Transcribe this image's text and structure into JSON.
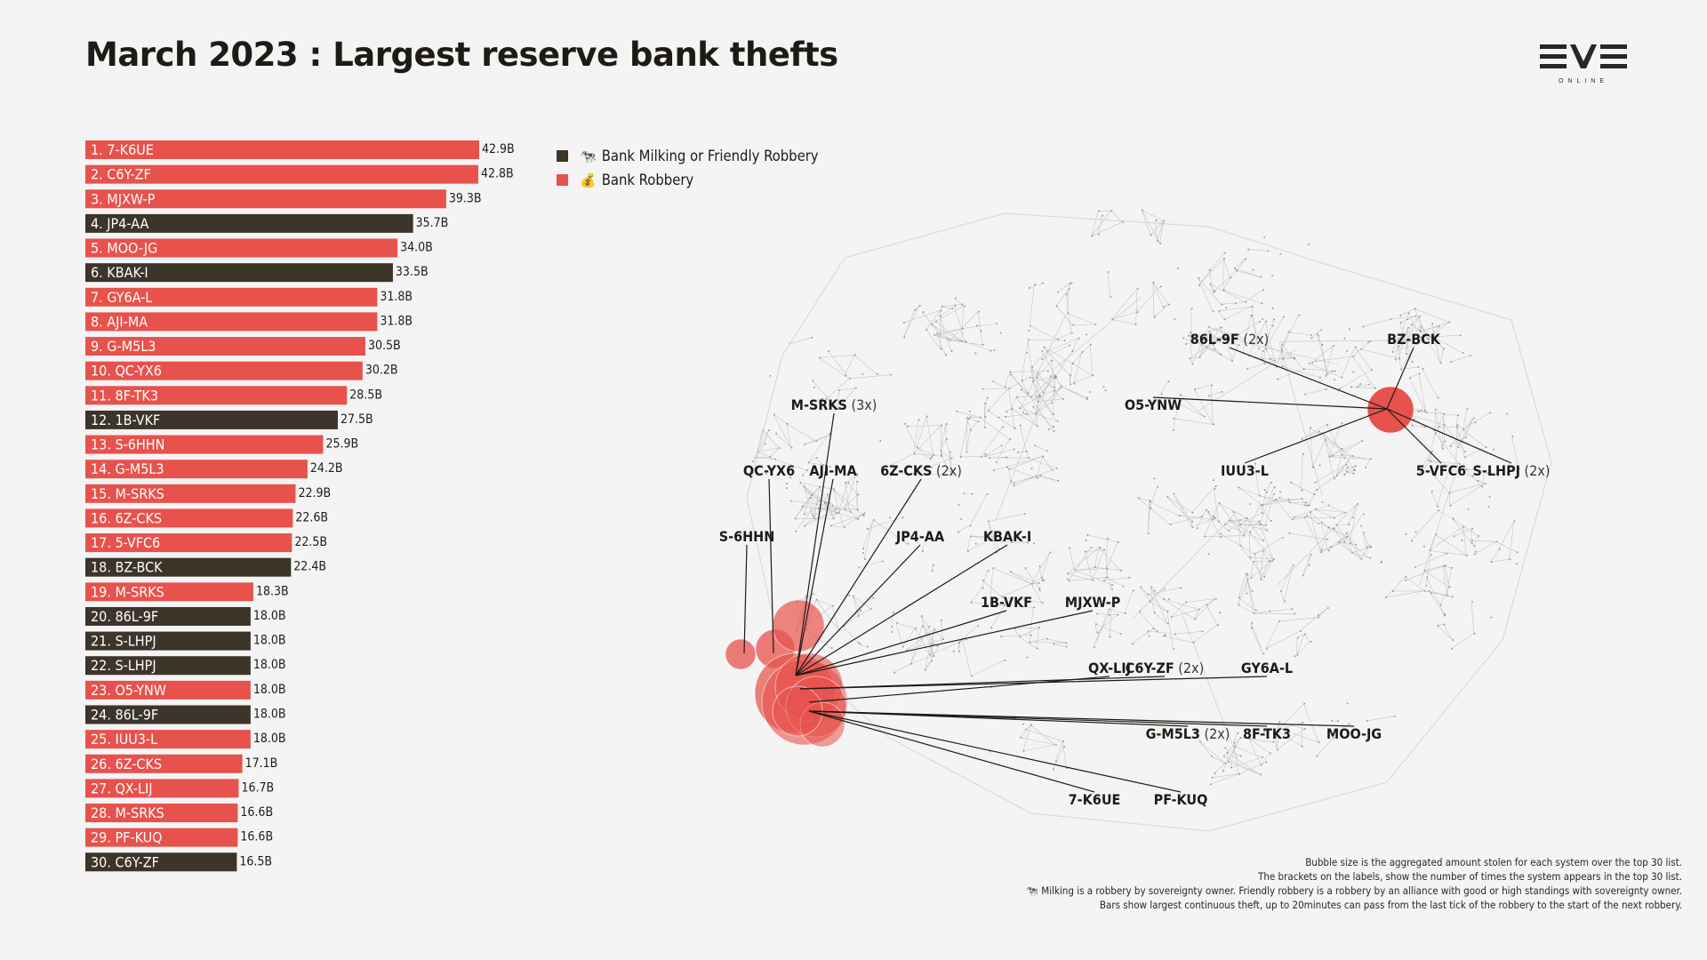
{
  "page": {
    "title": "March 2023 : Largest reserve bank thefts",
    "logo": {
      "main": "EVE",
      "sub": "ONLINE"
    }
  },
  "colors": {
    "milking": "#3d342a",
    "robbery": "#e8524c",
    "background": "#f4f4f4"
  },
  "legend": [
    {
      "key": "milking",
      "icon": "cow-icon",
      "glyph": "🐄",
      "label": "Bank Milking or Friendly Robbery"
    },
    {
      "key": "robbery",
      "icon": "money-bag-icon",
      "glyph": "💰",
      "label": "Bank Robbery"
    }
  ],
  "chart_data": [
    {
      "type": "bar",
      "orientation": "horizontal",
      "unit": "B",
      "categories": [
        "1. 7-K6UE",
        "2. C6Y-ZF",
        "3. MJXW-P",
        "4. JP4-AA",
        "5. MOO-JG",
        "6. KBAK-I",
        "7. GY6A-L",
        "8. AJI-MA",
        "9. G-M5L3",
        "10. QC-YX6",
        "11. 8F-TK3",
        "12. 1B-VKF",
        "13. S-6HHN",
        "14. G-M5L3",
        "15. M-SRKS",
        "16. 6Z-CKS",
        "17. 5-VFC6",
        "18. BZ-BCK",
        "19. M-SRKS",
        "20. 86L-9F",
        "21. S-LHPJ",
        "22. S-LHPJ",
        "23. O5-YNW",
        "24. 86L-9F",
        "25. IUU3-L",
        "26. 6Z-CKS",
        "27. QX-LIJ",
        "28. M-SRKS",
        "29. PF-KUQ",
        "30. C6Y-ZF"
      ],
      "values": [
        42.9,
        42.8,
        39.3,
        35.7,
        34.0,
        33.5,
        31.8,
        31.8,
        30.5,
        30.2,
        28.5,
        27.5,
        25.9,
        24.2,
        22.9,
        22.6,
        22.5,
        22.4,
        18.3,
        18.0,
        18.0,
        18.0,
        18.0,
        18.0,
        18.0,
        17.1,
        16.7,
        16.6,
        16.6,
        16.5
      ],
      "value_labels": [
        "42.9B",
        "42.8B",
        "39.3B",
        "35.7B",
        "34.0B",
        "33.5B",
        "31.8B",
        "31.8B",
        "30.5B",
        "30.2B",
        "28.5B",
        "27.5B",
        "25.9B",
        "24.2B",
        "22.9B",
        "22.6B",
        "22.5B",
        "22.4B",
        "18.3B",
        "18.0B",
        "18.0B",
        "18.0B",
        "18.0B",
        "18.0B",
        "18.0B",
        "17.1B",
        "16.7B",
        "16.6B",
        "16.6B",
        "16.5B"
      ],
      "kind": [
        "robbery",
        "robbery",
        "robbery",
        "milking",
        "robbery",
        "milking",
        "robbery",
        "robbery",
        "robbery",
        "robbery",
        "robbery",
        "milking",
        "robbery",
        "robbery",
        "robbery",
        "robbery",
        "robbery",
        "milking",
        "robbery",
        "milking",
        "milking",
        "milking",
        "robbery",
        "milking",
        "robbery",
        "robbery",
        "robbery",
        "robbery",
        "robbery",
        "milking"
      ]
    },
    {
      "type": "scatter",
      "description": "Bubble map of the galaxy; bubble size is aggregated amount stolen per system (top 30)",
      "labels": [
        {
          "name": "86L-9F",
          "count": "(2x)"
        },
        {
          "name": "BZ-BCK",
          "count": ""
        },
        {
          "name": "O5-YNW",
          "count": ""
        },
        {
          "name": "IUU3-L",
          "count": ""
        },
        {
          "name": "5-VFC6",
          "count": ""
        },
        {
          "name": "S-LHPJ",
          "count": "(2x)"
        },
        {
          "name": "M-SRKS",
          "count": "(3x)"
        },
        {
          "name": "QC-YX6",
          "count": ""
        },
        {
          "name": "AJI-MA",
          "count": ""
        },
        {
          "name": "6Z-CKS",
          "count": "(2x)"
        },
        {
          "name": "S-6HHN",
          "count": ""
        },
        {
          "name": "JP4-AA",
          "count": ""
        },
        {
          "name": "KBAK-I",
          "count": ""
        },
        {
          "name": "1B-VKF",
          "count": ""
        },
        {
          "name": "MJXW-P",
          "count": ""
        },
        {
          "name": "QX-LIJ",
          "count": ""
        },
        {
          "name": "C6Y-ZF",
          "count": "(2x)"
        },
        {
          "name": "GY6A-L",
          "count": ""
        },
        {
          "name": "G-M5L3",
          "count": "(2x)"
        },
        {
          "name": "8F-TK3",
          "count": ""
        },
        {
          "name": "MOO-JG",
          "count": ""
        },
        {
          "name": "7-K6UE",
          "count": ""
        },
        {
          "name": "PF-KUQ",
          "count": ""
        }
      ]
    }
  ],
  "notes": [
    "Bubble size is the aggregated amount stolen for each system over the top 30 list.",
    "The brackets on the labels, show the number of times the system appears in the top 30 list.",
    "🐄 Milking is a robbery by sovereignty owner. Friendly robbery is a robbery by an alliance with good or high standings with sovereignty owner.",
    "Bars show largest continuous theft, up to 20minutes can pass from the last tick of the robbery to the start of the next robbery."
  ]
}
